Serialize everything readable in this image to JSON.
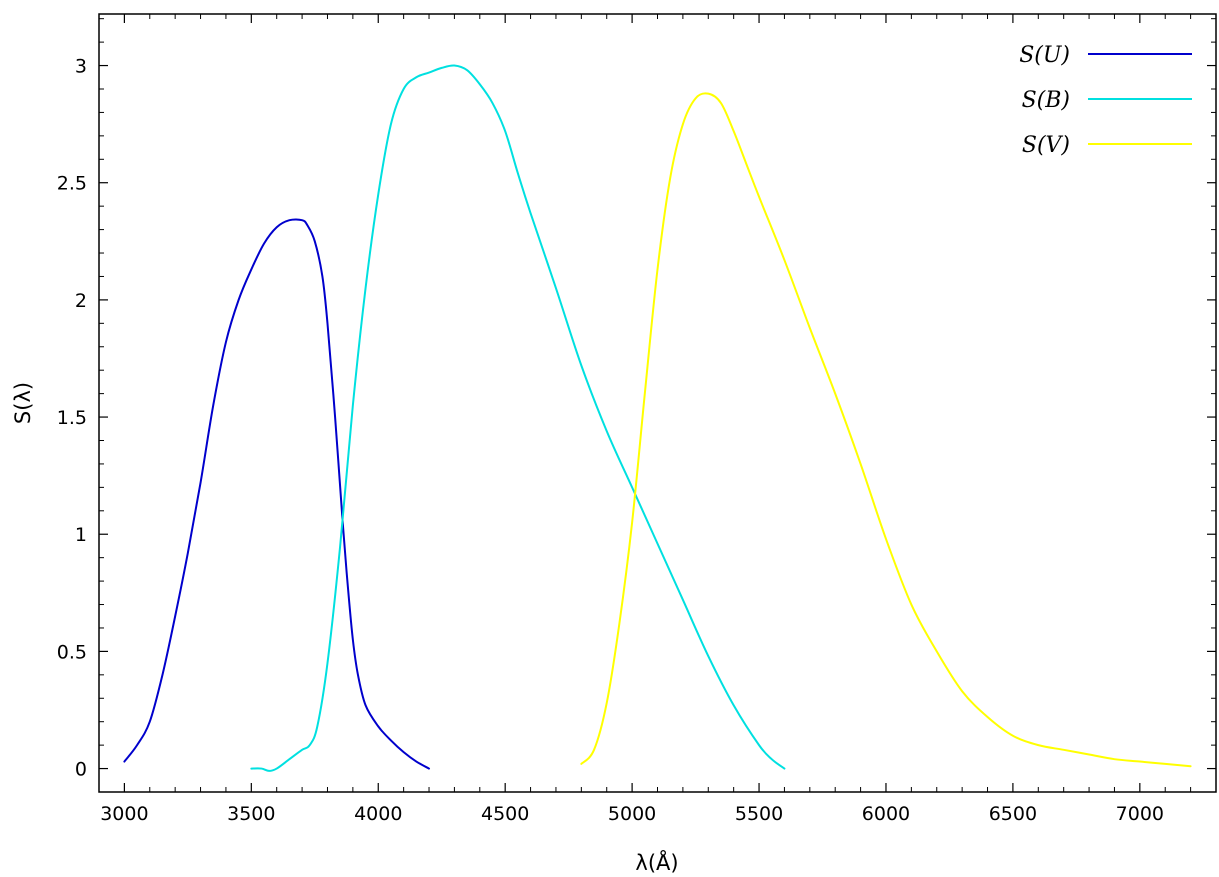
{
  "chart_data": {
    "type": "line",
    "xlabel": "λ(Å)",
    "ylabel": "S(λ)",
    "xlim": [
      2900,
      7300
    ],
    "ylim": [
      -0.1,
      3.22
    ],
    "xticks": [
      3000,
      3500,
      4000,
      4500,
      5000,
      5500,
      6000,
      6500,
      7000
    ],
    "yticks": [
      0,
      0.5,
      1,
      1.5,
      2,
      2.5,
      3
    ],
    "ytick_labels": [
      "0",
      "0.5",
      "1",
      "1.5",
      "2",
      "2.5",
      "3"
    ],
    "grid": false,
    "legend_position": "top-right",
    "series": [
      {
        "name": "S(U)",
        "color": "#0000cc",
        "x": [
          3000,
          3050,
          3100,
          3150,
          3200,
          3250,
          3300,
          3350,
          3400,
          3450,
          3500,
          3550,
          3600,
          3650,
          3700,
          3720,
          3750,
          3780,
          3800,
          3830,
          3860,
          3880,
          3900,
          3920,
          3950,
          4000,
          4050,
          4100,
          4150,
          4200
        ],
        "y": [
          0.03,
          0.1,
          0.2,
          0.4,
          0.65,
          0.92,
          1.22,
          1.55,
          1.82,
          2.0,
          2.13,
          2.24,
          2.31,
          2.34,
          2.34,
          2.32,
          2.25,
          2.1,
          1.9,
          1.5,
          1.05,
          0.78,
          0.55,
          0.4,
          0.27,
          0.18,
          0.12,
          0.07,
          0.03,
          0.0
        ],
        "dash": false
      },
      {
        "name": "S(B)",
        "color": "#00e0e0",
        "x": [
          3500,
          3540,
          3570,
          3600,
          3650,
          3700,
          3730,
          3760,
          3800,
          3850,
          3900,
          3950,
          4000,
          4050,
          4100,
          4150,
          4200,
          4250,
          4300,
          4350,
          4400,
          4450,
          4500,
          4550,
          4600,
          4700,
          4800,
          4900,
          5000,
          5100,
          5200,
          5300,
          5400,
          5500,
          5550,
          5600
        ],
        "y": [
          0.0,
          0.0,
          -0.01,
          0.0,
          0.04,
          0.08,
          0.1,
          0.18,
          0.45,
          0.95,
          1.55,
          2.05,
          2.45,
          2.75,
          2.9,
          2.95,
          2.97,
          2.99,
          3.0,
          2.98,
          2.92,
          2.84,
          2.72,
          2.54,
          2.37,
          2.05,
          1.72,
          1.44,
          1.2,
          0.96,
          0.72,
          0.48,
          0.27,
          0.1,
          0.04,
          0.0
        ],
        "dash": false
      },
      {
        "name": "S(V)",
        "color": "#ffff00",
        "x": [
          4800,
          4850,
          4900,
          4950,
          5000,
          5050,
          5100,
          5150,
          5200,
          5250,
          5300,
          5350,
          5400,
          5450,
          5500,
          5600,
          5700,
          5800,
          5900,
          6000,
          6100,
          6200,
          6300,
          6400,
          6500,
          6600,
          6700,
          6800,
          6900,
          7000,
          7100,
          7200
        ],
        "y": [
          0.02,
          0.08,
          0.28,
          0.62,
          1.05,
          1.6,
          2.13,
          2.52,
          2.75,
          2.86,
          2.88,
          2.84,
          2.72,
          2.58,
          2.44,
          2.17,
          1.88,
          1.6,
          1.3,
          0.98,
          0.7,
          0.5,
          0.33,
          0.22,
          0.14,
          0.1,
          0.08,
          0.06,
          0.04,
          0.03,
          0.02,
          0.01
        ],
        "dash": false
      }
    ]
  }
}
